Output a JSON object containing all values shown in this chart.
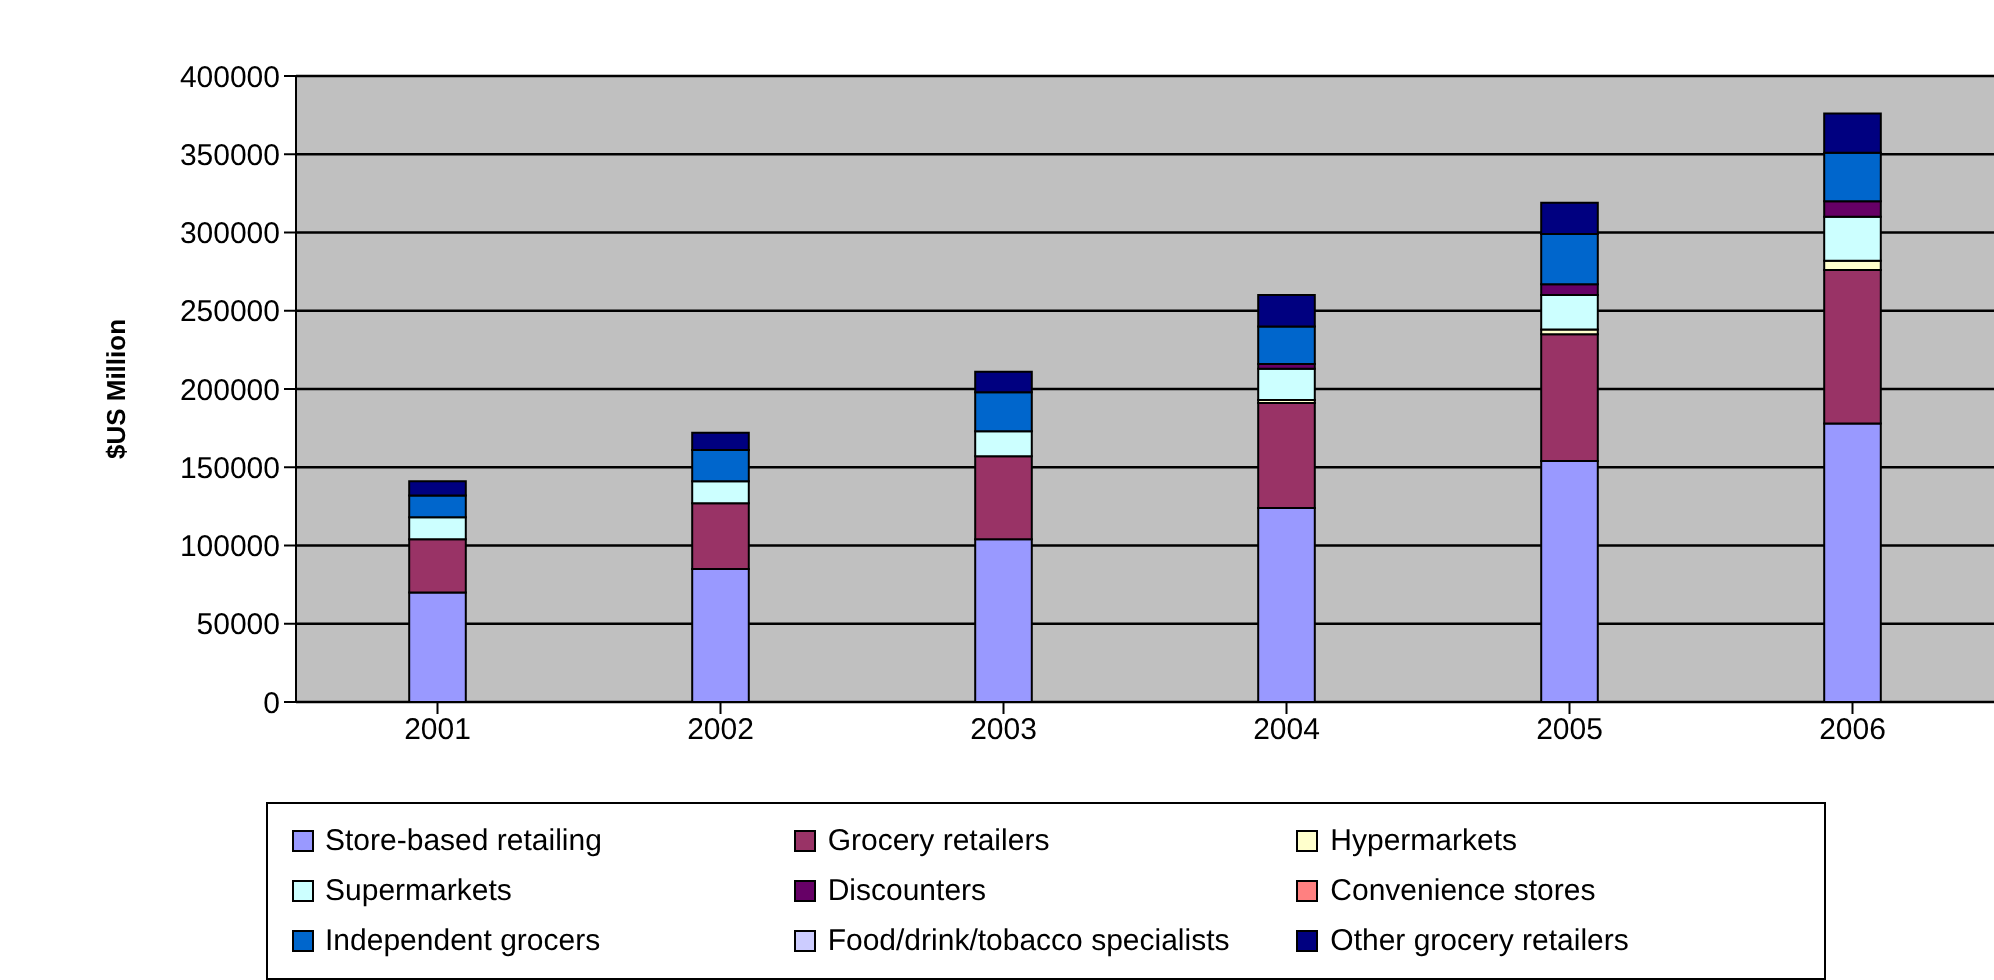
{
  "chart_data": {
    "type": "bar",
    "stacked": true,
    "ylabel": "$US Million",
    "categories": [
      "2001",
      "2002",
      "2003",
      "2004",
      "2005",
      "2006"
    ],
    "series": [
      {
        "name": "Store-based retailing",
        "color": "#9999ff",
        "values": [
          70000,
          85000,
          104000,
          124000,
          154000,
          178000
        ]
      },
      {
        "name": "Grocery retailers",
        "color": "#993366",
        "values": [
          34000,
          42000,
          53000,
          67000,
          81000,
          98000
        ]
      },
      {
        "name": "Hypermarkets",
        "color": "#ffffcc",
        "values": [
          0,
          0,
          null,
          2000,
          3000,
          6000
        ]
      },
      {
        "name": "Supermarkets",
        "color": "#ccffff",
        "values": [
          14000,
          14000,
          16000,
          20000,
          22000,
          28000
        ]
      },
      {
        "name": "Discounters",
        "color": "#660066",
        "values": [
          0,
          0,
          0,
          3000,
          7000,
          10000
        ]
      },
      {
        "name": "Convenience stores",
        "color": "#ff8080",
        "values": [
          0,
          0,
          0,
          0,
          0,
          0
        ]
      },
      {
        "name": "Independent grocers",
        "color": "#0066cc",
        "values": [
          14000,
          20000,
          25000,
          24000,
          32000,
          31000
        ]
      },
      {
        "name": "Food/drink/tobacco specialists",
        "color": "#ccccff",
        "values": [
          0,
          0,
          0,
          0,
          0,
          0
        ]
      },
      {
        "name": "Other grocery retailers",
        "color": "#000080",
        "values": [
          9000,
          11000,
          13000,
          20000,
          20000,
          25000
        ]
      }
    ],
    "ylim": [
      0,
      400000
    ],
    "yticks": [
      0,
      50000,
      100000,
      150000,
      200000,
      250000,
      300000,
      350000,
      400000
    ],
    "grid": "y",
    "legend": "bottom"
  }
}
